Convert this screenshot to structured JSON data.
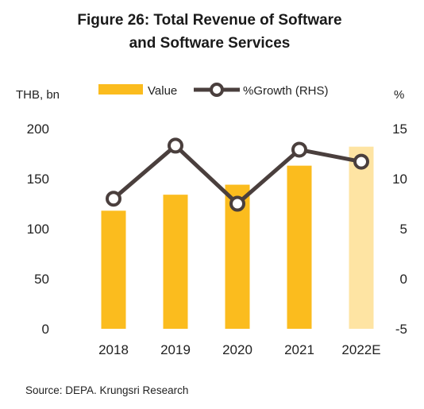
{
  "chart_data": {
    "type": "bar",
    "title_line1": "Figure 26: Total Revenue of Software",
    "title_line2": "and Software Services",
    "left_unit": "THB, bn",
    "right_unit": "%",
    "categories": [
      "2018",
      "2019",
      "2020",
      "2021",
      "2022E"
    ],
    "series": [
      {
        "name": "Value",
        "type": "bar",
        "axis": "left",
        "values": [
          118,
          134,
          144,
          163,
          182
        ],
        "colors": [
          "#FBBC1E",
          "#FBBC1E",
          "#FBBC1E",
          "#FBBC1E",
          "#FEE4A3"
        ]
      },
      {
        "name": "%Growth (RHS)",
        "type": "line",
        "axis": "right",
        "values": [
          8.0,
          13.3,
          7.5,
          12.9,
          11.7
        ],
        "color": "#4A3F3D"
      }
    ],
    "left_axis": {
      "ylim": [
        0,
        200
      ],
      "ticks": [
        "0",
        "50",
        "100",
        "150",
        "200"
      ]
    },
    "right_axis": {
      "ylim": [
        -5,
        15
      ],
      "ticks": [
        "-5",
        "0",
        "5",
        "10",
        "15"
      ]
    },
    "grid": false,
    "legend_position": "top"
  },
  "source": "Source: DEPA. Krungsri Research"
}
